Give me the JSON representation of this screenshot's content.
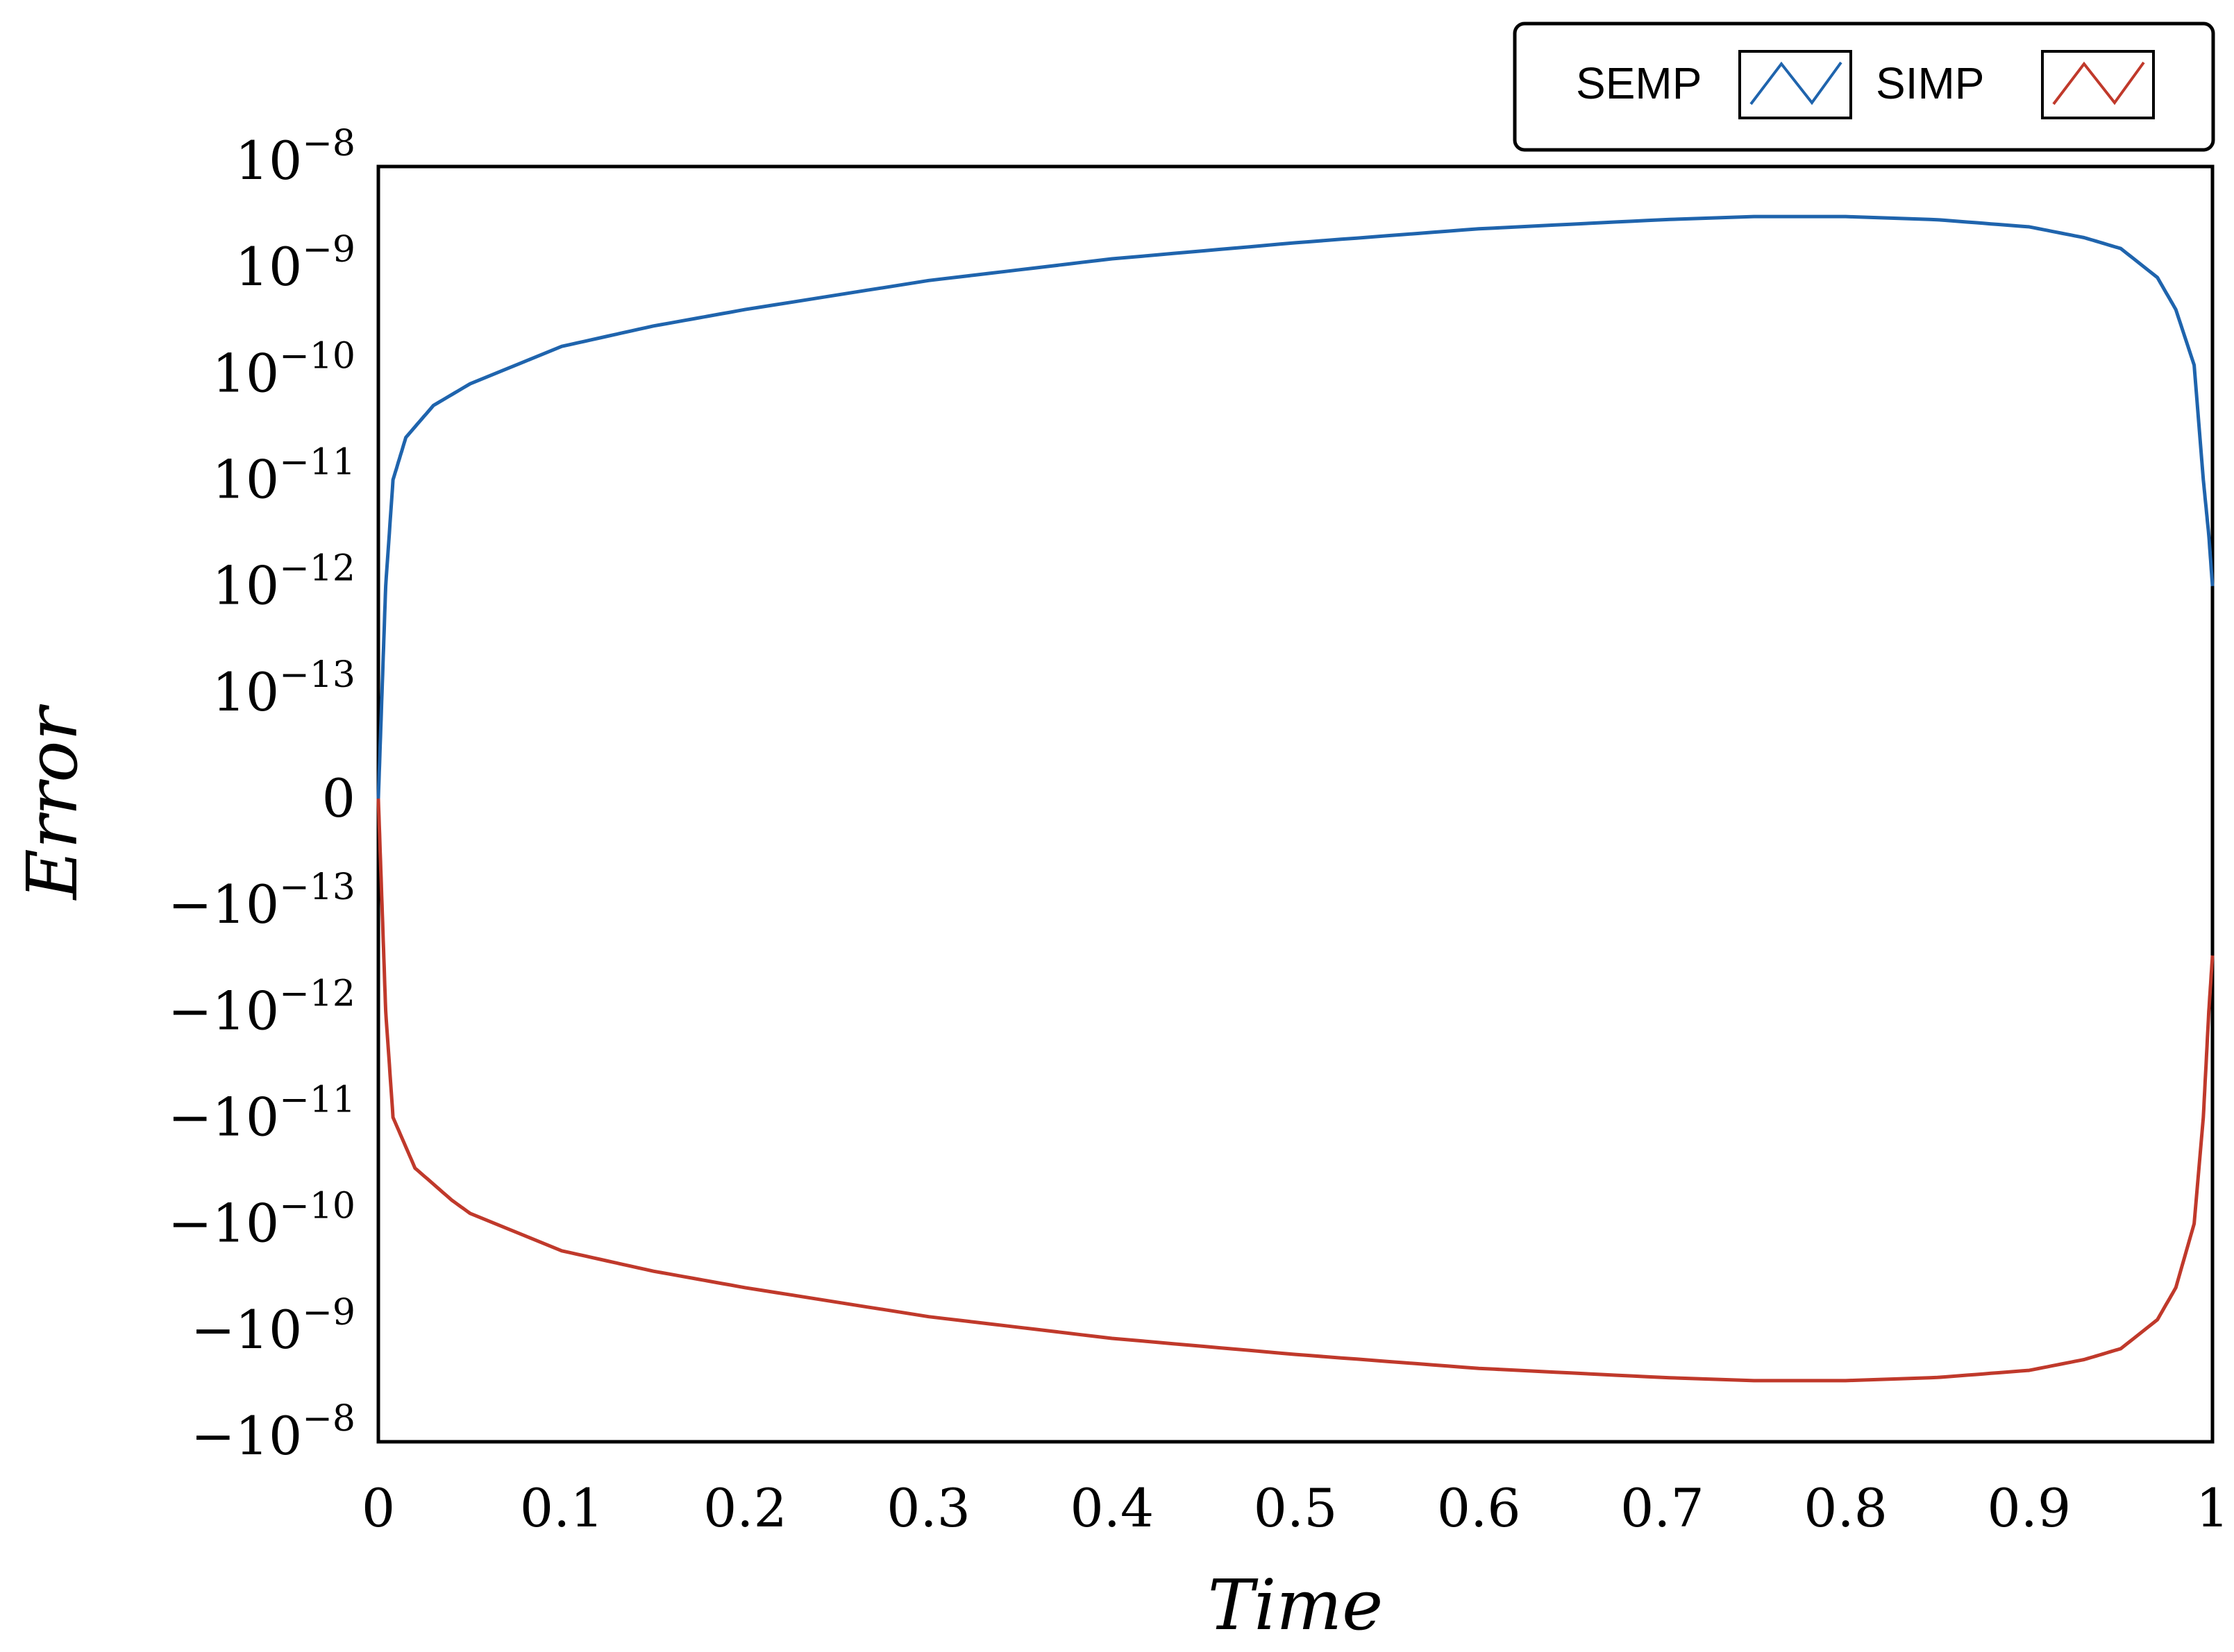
{
  "chart_data": {
    "type": "line",
    "title": "",
    "xlabel": "Time",
    "ylabel": "Error",
    "xlim": [
      0,
      1
    ],
    "x_ticks": [
      "0",
      "0.1",
      "0.2",
      "0.3",
      "0.4",
      "0.5",
      "0.6",
      "0.7",
      "0.8",
      "0.9",
      "1"
    ],
    "y_scale": "symmetric-log (zero at center, decades from 1e-13 to 1e-8 on each side)",
    "y_ticks": [
      {
        "base": "10",
        "exp": "−8"
      },
      {
        "base": "10",
        "exp": "−9"
      },
      {
        "base": "10",
        "exp": "−10"
      },
      {
        "base": "10",
        "exp": "−11"
      },
      {
        "base": "10",
        "exp": "−12"
      },
      {
        "base": "10",
        "exp": "−13"
      },
      {
        "base": "0",
        "exp": ""
      },
      {
        "base": "−10",
        "exp": "−13"
      },
      {
        "base": "−10",
        "exp": "−12"
      },
      {
        "base": "−10",
        "exp": "−11"
      },
      {
        "base": "−10",
        "exp": "−10"
      },
      {
        "base": "−10",
        "exp": "−9"
      },
      {
        "base": "−10",
        "exp": "−8"
      }
    ],
    "legend": {
      "placement": "top-right, above plot",
      "entries": [
        "SEMP",
        "SIMP"
      ]
    },
    "series": [
      {
        "name": "SEMP",
        "color": "#1f64ad",
        "points": [
          [
            0.0,
            0.0
          ],
          [
            0.002,
            1e-13
          ],
          [
            0.004,
            1e-12
          ],
          [
            0.008,
            1e-11
          ],
          [
            0.015,
            2.5e-11
          ],
          [
            0.03,
            5e-11
          ],
          [
            0.05,
            8e-11
          ],
          [
            0.1,
            1.8e-10
          ],
          [
            0.15,
            2.8e-10
          ],
          [
            0.2,
            4e-10
          ],
          [
            0.3,
            7.5e-10
          ],
          [
            0.4,
            1.2e-09
          ],
          [
            0.5,
            1.7e-09
          ],
          [
            0.6,
            2.3e-09
          ],
          [
            0.7,
            2.8e-09
          ],
          [
            0.75,
            3e-09
          ],
          [
            0.8,
            3e-09
          ],
          [
            0.85,
            2.8e-09
          ],
          [
            0.9,
            2.4e-09
          ],
          [
            0.93,
            1.9e-09
          ],
          [
            0.95,
            1.5e-09
          ],
          [
            0.97,
            8e-10
          ],
          [
            0.98,
            4e-10
          ],
          [
            0.99,
            1.2e-10
          ],
          [
            0.995,
            1e-11
          ],
          [
            0.998,
            3e-12
          ],
          [
            1.0,
            1e-12
          ]
        ]
      },
      {
        "name": "SIMP",
        "color": "#c0392b",
        "points": [
          [
            0.0,
            0.0
          ],
          [
            0.002,
            -1e-13
          ],
          [
            0.004,
            -1e-12
          ],
          [
            0.008,
            -1e-11
          ],
          [
            0.02,
            -3e-11
          ],
          [
            0.04,
            -6e-11
          ],
          [
            0.05,
            -8e-11
          ],
          [
            0.1,
            -1.8e-10
          ],
          [
            0.15,
            -2.8e-10
          ],
          [
            0.2,
            -4e-10
          ],
          [
            0.3,
            -7.5e-10
          ],
          [
            0.4,
            -1.2e-09
          ],
          [
            0.5,
            -1.7e-09
          ],
          [
            0.6,
            -2.3e-09
          ],
          [
            0.7,
            -2.8e-09
          ],
          [
            0.75,
            -3e-09
          ],
          [
            0.8,
            -3e-09
          ],
          [
            0.85,
            -2.8e-09
          ],
          [
            0.9,
            -2.4e-09
          ],
          [
            0.93,
            -1.9e-09
          ],
          [
            0.95,
            -1.5e-09
          ],
          [
            0.97,
            -8e-10
          ],
          [
            0.98,
            -4e-10
          ],
          [
            0.99,
            -1e-10
          ],
          [
            0.995,
            -1e-11
          ],
          [
            0.998,
            -1e-12
          ],
          [
            1.0,
            -3e-13
          ]
        ]
      }
    ]
  }
}
